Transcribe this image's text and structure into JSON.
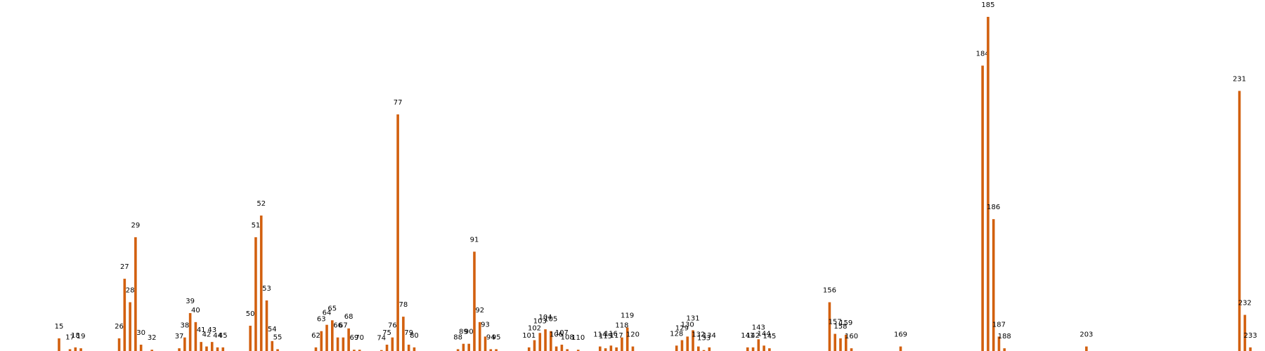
{
  "chart_data": {
    "type": "bar",
    "title": "",
    "xlabel": "",
    "ylabel": "",
    "grid": false,
    "legend": "none",
    "bar_color": "#d2600f",
    "ylim": [
      0,
      185
    ],
    "xlim": [
      5,
      240
    ],
    "points": [
      {
        "x": 15,
        "y": 7
      },
      {
        "x": 17,
        "y": 1
      },
      {
        "x": 18,
        "y": 2
      },
      {
        "x": 19,
        "y": 1.5
      },
      {
        "x": 26,
        "y": 7
      },
      {
        "x": 27,
        "y": 40
      },
      {
        "x": 28,
        "y": 27
      },
      {
        "x": 29,
        "y": 63
      },
      {
        "x": 30,
        "y": 3.5
      },
      {
        "x": 32,
        "y": 0.7
      },
      {
        "x": 37,
        "y": 1.5
      },
      {
        "x": 38,
        "y": 7.5
      },
      {
        "x": 39,
        "y": 21
      },
      {
        "x": 40,
        "y": 16
      },
      {
        "x": 41,
        "y": 5
      },
      {
        "x": 42,
        "y": 2.5
      },
      {
        "x": 43,
        "y": 5
      },
      {
        "x": 44,
        "y": 2
      },
      {
        "x": 45,
        "y": 2
      },
      {
        "x": 50,
        "y": 14
      },
      {
        "x": 51,
        "y": 63
      },
      {
        "x": 52,
        "y": 75
      },
      {
        "x": 53,
        "y": 28
      },
      {
        "x": 54,
        "y": 5.5
      },
      {
        "x": 55,
        "y": 1
      },
      {
        "x": 62,
        "y": 2
      },
      {
        "x": 63,
        "y": 11
      },
      {
        "x": 64,
        "y": 14.5
      },
      {
        "x": 65,
        "y": 17
      },
      {
        "x": 66,
        "y": 7.5
      },
      {
        "x": 67,
        "y": 7.5
      },
      {
        "x": 68,
        "y": 12.5
      },
      {
        "x": 69,
        "y": 0.7
      },
      {
        "x": 70,
        "y": 0.7
      },
      {
        "x": 74,
        "y": 0.5
      },
      {
        "x": 75,
        "y": 3.5
      },
      {
        "x": 76,
        "y": 7.5
      },
      {
        "x": 77,
        "y": 131
      },
      {
        "x": 78,
        "y": 19
      },
      {
        "x": 79,
        "y": 3.5
      },
      {
        "x": 80,
        "y": 2
      },
      {
        "x": 88,
        "y": 1
      },
      {
        "x": 89,
        "y": 4
      },
      {
        "x": 90,
        "y": 4
      },
      {
        "x": 91,
        "y": 55
      },
      {
        "x": 92,
        "y": 16
      },
      {
        "x": 93,
        "y": 8
      },
      {
        "x": 94,
        "y": 1
      },
      {
        "x": 95,
        "y": 1
      },
      {
        "x": 101,
        "y": 2
      },
      {
        "x": 102,
        "y": 6
      },
      {
        "x": 103,
        "y": 10
      },
      {
        "x": 104,
        "y": 12
      },
      {
        "x": 105,
        "y": 11
      },
      {
        "x": 106,
        "y": 2.5
      },
      {
        "x": 107,
        "y": 3.5
      },
      {
        "x": 108,
        "y": 1
      },
      {
        "x": 110,
        "y": 0.7
      },
      {
        "x": 114,
        "y": 2.5
      },
      {
        "x": 115,
        "y": 1.5
      },
      {
        "x": 116,
        "y": 3
      },
      {
        "x": 117,
        "y": 2
      },
      {
        "x": 118,
        "y": 7.5
      },
      {
        "x": 119,
        "y": 13
      },
      {
        "x": 120,
        "y": 2.5
      },
      {
        "x": 128,
        "y": 3
      },
      {
        "x": 129,
        "y": 6
      },
      {
        "x": 130,
        "y": 8
      },
      {
        "x": 131,
        "y": 11.5
      },
      {
        "x": 132,
        "y": 2.5
      },
      {
        "x": 133,
        "y": 0.5
      },
      {
        "x": 134,
        "y": 2
      },
      {
        "x": 141,
        "y": 2
      },
      {
        "x": 142,
        "y": 2
      },
      {
        "x": 143,
        "y": 6.5
      },
      {
        "x": 144,
        "y": 3
      },
      {
        "x": 145,
        "y": 1.5
      },
      {
        "x": 156,
        "y": 27
      },
      {
        "x": 157,
        "y": 9.5
      },
      {
        "x": 158,
        "y": 7
      },
      {
        "x": 159,
        "y": 9
      },
      {
        "x": 160,
        "y": 1.5
      },
      {
        "x": 169,
        "y": 2.5
      },
      {
        "x": 184,
        "y": 158
      },
      {
        "x": 185,
        "y": 185
      },
      {
        "x": 186,
        "y": 73
      },
      {
        "x": 187,
        "y": 8
      },
      {
        "x": 188,
        "y": 1.5
      },
      {
        "x": 203,
        "y": 2.5
      },
      {
        "x": 231,
        "y": 144
      },
      {
        "x": 232,
        "y": 20
      },
      {
        "x": 233,
        "y": 2
      }
    ]
  }
}
